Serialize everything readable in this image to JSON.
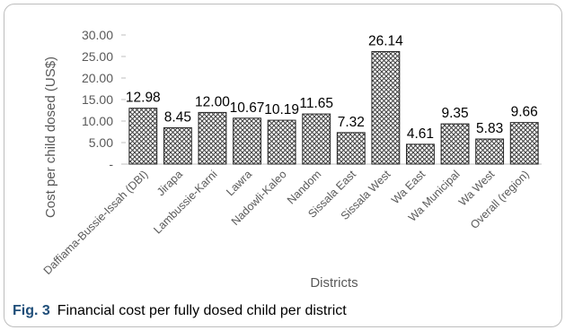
{
  "chart_data": {
    "type": "bar",
    "categories": [
      "Daffiama-Bussie-Issah (DBI)",
      "Jirapa",
      "Lambussie-Karni",
      "Lawra",
      "Nadowli-Kaleo",
      "Nandom",
      "Sissala East",
      "Sissala West",
      "Wa East",
      "Wa Municipal",
      "Wa West",
      "Overall (region)"
    ],
    "values": [
      12.98,
      8.45,
      12.0,
      10.67,
      10.19,
      11.65,
      7.32,
      26.14,
      4.61,
      9.35,
      5.83,
      9.66
    ],
    "data_labels": [
      "12.98",
      "8.45",
      "12.00",
      "10.67",
      "10.19",
      "11.65",
      "7.32",
      "26.14",
      "4.61",
      "9.35",
      "5.83",
      "9.66"
    ],
    "ylim": [
      0,
      30
    ],
    "yticks": [
      0,
      5,
      10,
      15,
      20,
      25,
      30
    ],
    "ytick_labels": [
      "-",
      "5.00",
      "10.00",
      "15.00",
      "20.00",
      "25.00",
      "30.00"
    ],
    "xlabel": "Districts",
    "ylabel": "Cost per child dosed (US$)",
    "grid": false,
    "legend": "none",
    "bar_pattern": "crosshatch",
    "bar_color": "#404040"
  },
  "caption": {
    "label": "Fig. 3",
    "text": "Financial cost per fully dosed child per district"
  }
}
